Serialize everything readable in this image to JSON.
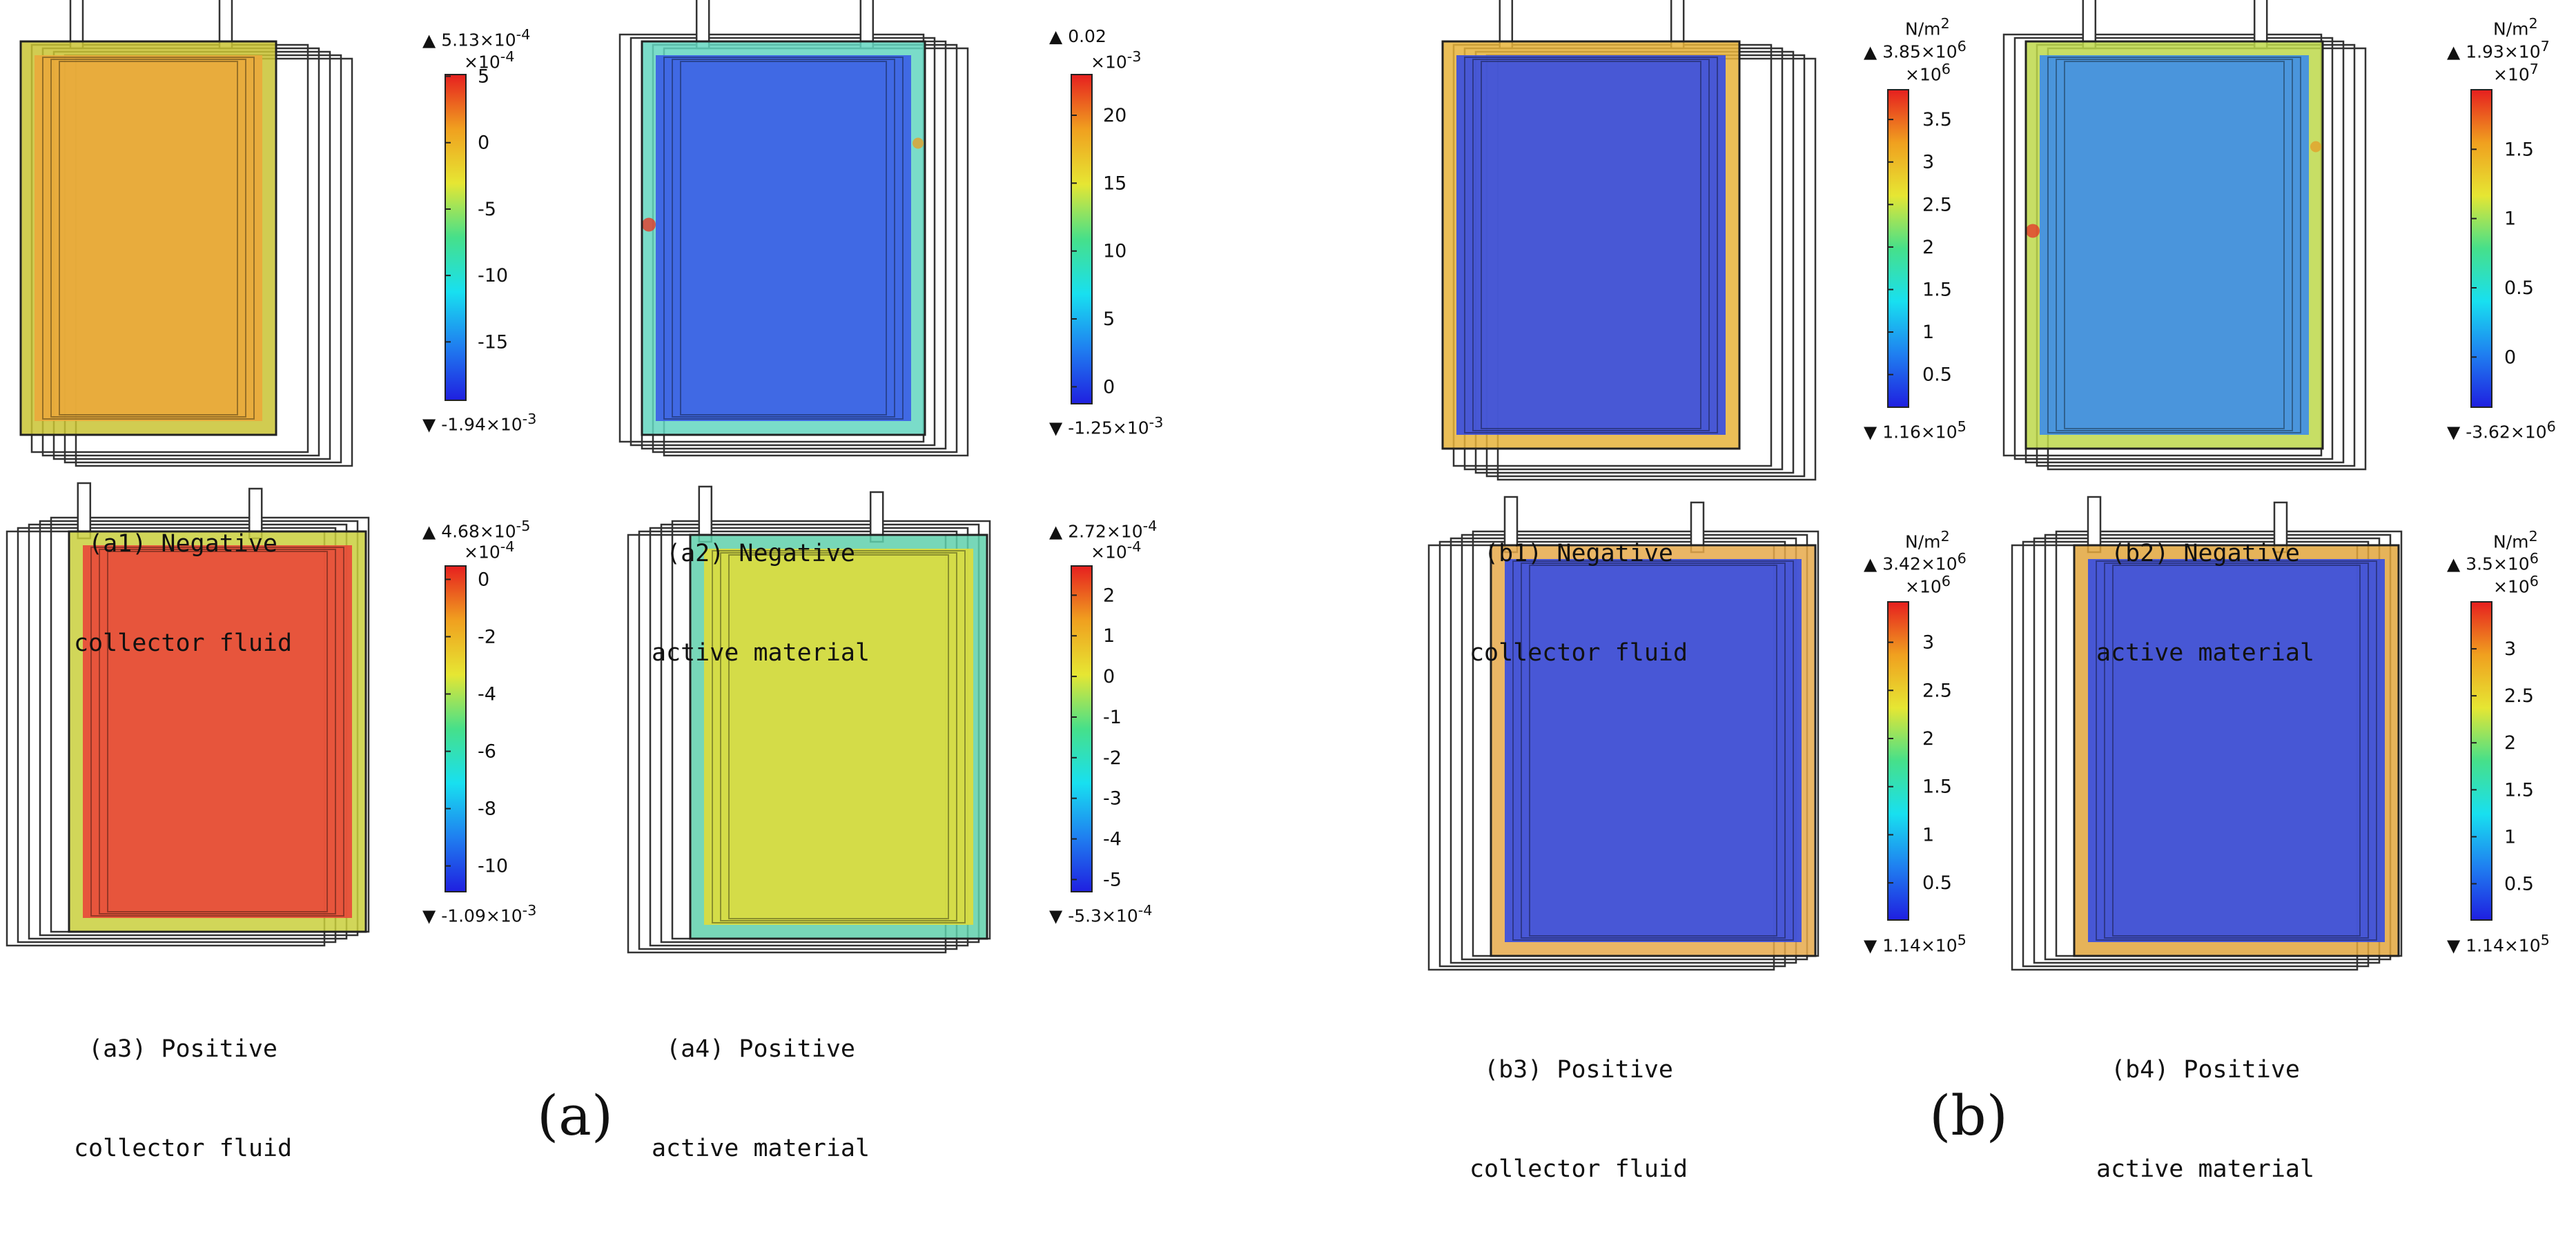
{
  "subfigures": [
    {
      "label": "(a)",
      "panels": [
        {
          "id": "a1",
          "caption_line1": "(a1) Negative",
          "caption_line2": "collector fluid",
          "max": "5.13×10",
          "max_exp": "-4",
          "min": "-1.94×10",
          "min_exp": "-3",
          "unit": "",
          "multiplier": "×10",
          "multiplier_exp": "-4",
          "ticks": [
            "5",
            "0",
            "-5",
            "-10",
            "-15"
          ],
          "tick_values": [
            5,
            0,
            -5,
            -10,
            -15
          ],
          "range": [
            -19.4,
            5.13
          ],
          "fill_color": "#e9a93c",
          "edge_color": "#c9c332",
          "boxes_side": "right",
          "rivets": false
        },
        {
          "id": "a2",
          "caption_line1": "(a2) Negative",
          "caption_line2": "active material",
          "max": "0.02",
          "max_exp": "",
          "min": "-1.25×10",
          "min_exp": "-3",
          "unit": "",
          "multiplier": "×10",
          "multiplier_exp": "-3",
          "ticks": [
            "20",
            "15",
            "10",
            "5",
            "0"
          ],
          "tick_values": [
            20,
            15,
            10,
            5,
            0
          ],
          "range": [
            -1.25,
            23
          ],
          "fill_color": "#3b5ee6",
          "edge_color": "#63d6c0",
          "boxes_side": "center",
          "rivets": true
        },
        {
          "id": "a3",
          "caption_line1": "(a3) Positive",
          "caption_line2": "collector fluid",
          "max": "4.68×10",
          "max_exp": "-5",
          "min": "-1.09×10",
          "min_exp": "-3",
          "unit": "",
          "multiplier": "×10",
          "multiplier_exp": "-4",
          "ticks": [
            "0",
            "-2",
            "-4",
            "-6",
            "-8",
            "-10"
          ],
          "tick_values": [
            0,
            -2,
            -4,
            -6,
            -8,
            -10
          ],
          "range": [
            -10.9,
            0.468
          ],
          "fill_color": "#e84a3a",
          "edge_color": "#c9cf3c",
          "boxes_side": "left",
          "rivets": false
        },
        {
          "id": "a4",
          "caption_line1": "(a4) Positive",
          "caption_line2": "active material",
          "max": "2.72×10",
          "max_exp": "-4",
          "min": "-5.3×10",
          "min_exp": "-4",
          "unit": "",
          "multiplier": "×10",
          "multiplier_exp": "-4",
          "ticks": [
            "2",
            "1",
            "0",
            "-1",
            "-2",
            "-3",
            "-4",
            "-5"
          ],
          "tick_values": [
            2,
            1,
            0,
            -1,
            -2,
            -3,
            -4,
            -5
          ],
          "range": [
            -5.3,
            2.72
          ],
          "fill_color": "#dcdc3e",
          "edge_color": "#5fd0ac",
          "boxes_side": "left",
          "rivets": false
        }
      ]
    },
    {
      "label": "(b)",
      "panels": [
        {
          "id": "b1",
          "caption_line1": "(b1) Negative",
          "caption_line2": "collector fluid",
          "max": "3.85×10",
          "max_exp": "6",
          "min": "1.16×10",
          "min_exp": "5",
          "unit": "N/m",
          "unit_exp": "2",
          "multiplier": "×10",
          "multiplier_exp": "6",
          "ticks": [
            "3.5",
            "3",
            "2.5",
            "2",
            "1.5",
            "1",
            "0.5"
          ],
          "tick_values": [
            3.5,
            3,
            2.5,
            2,
            1.5,
            1,
            0.5
          ],
          "range": [
            0.116,
            3.85
          ],
          "fill_color": "#3a4fe0",
          "edge_color": "#e6b33a",
          "boxes_side": "right",
          "rivets": false
        },
        {
          "id": "b2",
          "caption_line1": "(b2) Negative",
          "caption_line2": "active material",
          "max": "1.93×10",
          "max_exp": "7",
          "min": "-3.62×10",
          "min_exp": "6",
          "unit": "N/m",
          "unit_exp": "2",
          "multiplier": "×10",
          "multiplier_exp": "7",
          "ticks": [
            "1.5",
            "1",
            "0.5",
            "0"
          ],
          "tick_values": [
            1.5,
            1,
            0.5,
            0
          ],
          "range": [
            -0.362,
            1.93
          ],
          "fill_color": "#3f8ee6",
          "edge_color": "#bdd84a",
          "boxes_side": "center",
          "rivets": true
        },
        {
          "id": "b3",
          "caption_line1": "(b3) Positive",
          "caption_line2": "collector fluid",
          "max": "3.42×10",
          "max_exp": "6",
          "min": "1.14×10",
          "min_exp": "5",
          "unit": "N/m",
          "unit_exp": "2",
          "multiplier": "×10",
          "multiplier_exp": "6",
          "ticks": [
            "3",
            "2.5",
            "2",
            "1.5",
            "1",
            "0.5"
          ],
          "tick_values": [
            3,
            2.5,
            2,
            1.5,
            1,
            0.5
          ],
          "range": [
            0.114,
            3.42
          ],
          "fill_color": "#3a4fe0",
          "edge_color": "#e6a94a",
          "boxes_side": "left",
          "rivets": false
        },
        {
          "id": "b4",
          "caption_line1": "(b4) Positive",
          "caption_line2": "active material",
          "max": "3.5×10",
          "max_exp": "6",
          "min": "1.14×10",
          "min_exp": "5",
          "unit": "N/m",
          "unit_exp": "2",
          "multiplier": "×10",
          "multiplier_exp": "6",
          "ticks": [
            "3",
            "2.5",
            "2",
            "1.5",
            "1",
            "0.5"
          ],
          "tick_values": [
            3,
            2.5,
            2,
            1.5,
            1,
            0.5
          ],
          "range": [
            0.114,
            3.5
          ],
          "fill_color": "#3a4fe0",
          "edge_color": "#e2a63c",
          "boxes_side": "left",
          "rivets": false
        }
      ]
    }
  ],
  "colormap": [
    "#1f1fe0",
    "#1f7ff0",
    "#18e0f0",
    "#46e08a",
    "#e6e633",
    "#f0a01f",
    "#e61f1f"
  ]
}
